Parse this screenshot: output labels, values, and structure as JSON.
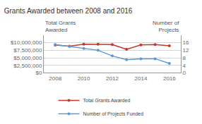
{
  "chart_data": {
    "type": "line",
    "title": "Grants Awarded between 2008 and 2016",
    "ylabel": "Total Grants\nAwarded",
    "y2label": "Number of\nProjects",
    "x": [
      2008,
      2009,
      2010,
      2011,
      2012,
      2013,
      2014,
      2015,
      2016
    ],
    "series": [
      {
        "name": "Total Grants Awarded",
        "color": "#c0392b",
        "marker": "circle",
        "values": [
          9200000,
          8900000,
          9500000,
          9500000,
          9400000,
          7800000,
          9300000,
          9400000,
          9000000
        ]
      },
      {
        "name": "Number of Projects Funded",
        "color": "#5b9bd5",
        "marker": "circle",
        "axis": "y2",
        "values": [
          15.0,
          14.0,
          13.0,
          12.0,
          9.0,
          7.0,
          7.5,
          7.5,
          5.0
        ]
      }
    ],
    "xlim": [
      2007.2,
      2016.8
    ],
    "xticks": [
      2008,
      2010,
      2012,
      2014,
      2016
    ],
    "ylim": [
      0,
      12500000
    ],
    "yticks": [
      {
        "value": 0,
        "label": "$0"
      },
      {
        "value": 2500000,
        "label": "$2,500,000"
      },
      {
        "value": 5000000,
        "label": "$5,000,000"
      },
      {
        "value": 7500000,
        "label": "$7,500,000"
      },
      {
        "value": 10000000,
        "label": "$10,000,000"
      }
    ],
    "y2lim": [
      0,
      20
    ],
    "y2ticks": [
      0,
      4,
      8,
      12,
      16
    ],
    "grid": true,
    "legend": "bottom"
  }
}
